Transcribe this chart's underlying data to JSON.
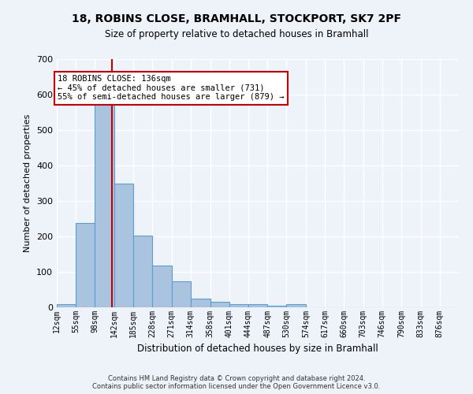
{
  "title_line1": "18, ROBINS CLOSE, BRAMHALL, STOCKPORT, SK7 2PF",
  "title_line2": "Size of property relative to detached houses in Bramhall",
  "xlabel": "Distribution of detached houses by size in Bramhall",
  "ylabel": "Number of detached properties",
  "bar_values": [
    8,
    237,
    590,
    350,
    203,
    117,
    73,
    25,
    15,
    10,
    8,
    5,
    8,
    0,
    0,
    0,
    0,
    0,
    0,
    0,
    0
  ],
  "bin_labels": [
    "12sqm",
    "55sqm",
    "98sqm",
    "142sqm",
    "185sqm",
    "228sqm",
    "271sqm",
    "314sqm",
    "358sqm",
    "401sqm",
    "444sqm",
    "487sqm",
    "530sqm",
    "574sqm",
    "617sqm",
    "660sqm",
    "703sqm",
    "746sqm",
    "790sqm",
    "833sqm",
    "876sqm"
  ],
  "bin_edges": [
    12,
    55,
    98,
    142,
    185,
    228,
    271,
    314,
    358,
    401,
    444,
    487,
    530,
    574,
    617,
    660,
    703,
    746,
    790,
    833,
    876,
    919
  ],
  "bar_color": "#aac4e0",
  "bar_edge_color": "#5a9fd4",
  "vline_x": 136,
  "vline_color": "#cc0000",
  "annotation_line1": "18 ROBINS CLOSE: 136sqm",
  "annotation_line2": "← 45% of detached houses are smaller (731)",
  "annotation_line3": "55% of semi-detached houses are larger (879) →",
  "annotation_box_color": "#ffffff",
  "annotation_box_edge": "#cc0000",
  "ylim": [
    0,
    700
  ],
  "yticks": [
    0,
    100,
    200,
    300,
    400,
    500,
    600,
    700
  ],
  "background_color": "#eef2f9",
  "grid_color": "#ffffff",
  "footer_line1": "Contains HM Land Registry data © Crown copyright and database right 2024.",
  "footer_line2": "Contains public sector information licensed under the Open Government Licence v3.0."
}
